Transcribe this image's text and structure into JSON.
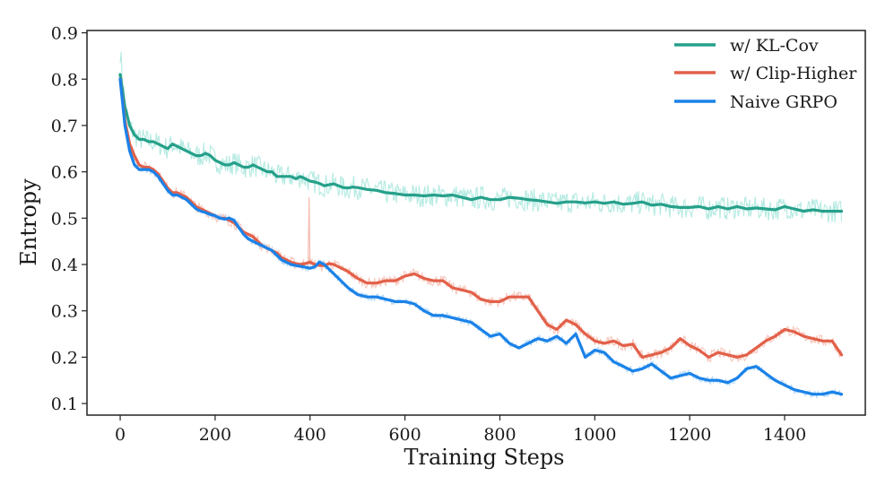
{
  "chart_data": {
    "type": "line",
    "title": "",
    "xlabel": "Training Steps",
    "ylabel": "Entropy",
    "xlim": [
      -70,
      1570
    ],
    "ylim": [
      0.075,
      0.905
    ],
    "xticks": [
      0,
      200,
      400,
      600,
      800,
      1000,
      1200,
      1400
    ],
    "yticks": [
      0.1,
      0.2,
      0.3,
      0.4,
      0.5,
      0.6,
      0.7,
      0.8,
      0.9
    ],
    "grid": false,
    "legend_position": "top-right",
    "series": [
      {
        "name": "w/ KL-Cov",
        "color": "#26a08a",
        "raw_color": "#a6e6dc",
        "x": [
          0,
          10,
          20,
          30,
          40,
          50,
          60,
          70,
          80,
          90,
          100,
          110,
          120,
          130,
          140,
          150,
          160,
          170,
          180,
          190,
          200,
          210,
          220,
          230,
          240,
          250,
          260,
          270,
          280,
          290,
          300,
          310,
          320,
          330,
          340,
          350,
          360,
          370,
          380,
          390,
          400,
          410,
          420,
          430,
          440,
          450,
          460,
          470,
          480,
          490,
          500,
          520,
          540,
          560,
          580,
          600,
          620,
          640,
          660,
          680,
          700,
          720,
          740,
          760,
          780,
          800,
          820,
          840,
          860,
          880,
          900,
          920,
          940,
          960,
          980,
          1000,
          1020,
          1040,
          1060,
          1080,
          1100,
          1120,
          1140,
          1160,
          1180,
          1200,
          1220,
          1240,
          1260,
          1280,
          1300,
          1320,
          1340,
          1360,
          1380,
          1400,
          1420,
          1440,
          1460,
          1480,
          1500,
          1520
        ],
        "values": [
          0.81,
          0.74,
          0.7,
          0.68,
          0.67,
          0.67,
          0.665,
          0.665,
          0.66,
          0.655,
          0.65,
          0.66,
          0.655,
          0.65,
          0.645,
          0.64,
          0.635,
          0.635,
          0.64,
          0.635,
          0.625,
          0.62,
          0.615,
          0.615,
          0.62,
          0.615,
          0.61,
          0.61,
          0.615,
          0.61,
          0.605,
          0.6,
          0.6,
          0.59,
          0.59,
          0.59,
          0.59,
          0.585,
          0.59,
          0.585,
          0.58,
          0.578,
          0.575,
          0.57,
          0.572,
          0.574,
          0.57,
          0.566,
          0.565,
          0.567,
          0.566,
          0.562,
          0.56,
          0.555,
          0.553,
          0.55,
          0.55,
          0.548,
          0.55,
          0.548,
          0.55,
          0.545,
          0.54,
          0.545,
          0.54,
          0.54,
          0.545,
          0.543,
          0.54,
          0.538,
          0.535,
          0.532,
          0.535,
          0.535,
          0.533,
          0.535,
          0.532,
          0.535,
          0.53,
          0.532,
          0.535,
          0.528,
          0.53,
          0.525,
          0.523,
          0.523,
          0.525,
          0.52,
          0.525,
          0.52,
          0.525,
          0.52,
          0.522,
          0.52,
          0.518,
          0.525,
          0.52,
          0.515,
          0.518,
          0.515,
          0.515,
          0.515
        ]
      },
      {
        "name": "w/ Clip-Higher",
        "color": "#e26049",
        "raw_color": "#f6bcb0",
        "x": [
          0,
          10,
          20,
          30,
          40,
          50,
          60,
          70,
          80,
          90,
          100,
          110,
          120,
          130,
          140,
          150,
          160,
          170,
          180,
          190,
          200,
          210,
          220,
          230,
          240,
          250,
          260,
          270,
          280,
          290,
          300,
          310,
          320,
          330,
          340,
          350,
          360,
          370,
          380,
          390,
          400,
          410,
          420,
          430,
          440,
          450,
          460,
          480,
          500,
          520,
          540,
          560,
          580,
          600,
          620,
          640,
          660,
          680,
          700,
          720,
          740,
          760,
          780,
          800,
          820,
          840,
          860,
          880,
          900,
          920,
          940,
          960,
          980,
          1000,
          1020,
          1040,
          1060,
          1080,
          1100,
          1120,
          1140,
          1160,
          1180,
          1200,
          1220,
          1240,
          1260,
          1280,
          1300,
          1320,
          1340,
          1360,
          1380,
          1400,
          1420,
          1440,
          1460,
          1480,
          1500,
          1520
        ],
        "values": [
          0.8,
          0.71,
          0.66,
          0.635,
          0.615,
          0.61,
          0.61,
          0.605,
          0.595,
          0.58,
          0.565,
          0.555,
          0.555,
          0.55,
          0.545,
          0.535,
          0.525,
          0.52,
          0.515,
          0.51,
          0.505,
          0.5,
          0.5,
          0.495,
          0.49,
          0.48,
          0.47,
          0.465,
          0.46,
          0.45,
          0.44,
          0.435,
          0.43,
          0.425,
          0.415,
          0.41,
          0.405,
          0.402,
          0.4,
          0.402,
          0.405,
          0.4,
          0.398,
          0.398,
          0.402,
          0.4,
          0.395,
          0.385,
          0.37,
          0.36,
          0.36,
          0.365,
          0.365,
          0.375,
          0.38,
          0.37,
          0.365,
          0.365,
          0.35,
          0.345,
          0.34,
          0.325,
          0.32,
          0.32,
          0.33,
          0.33,
          0.33,
          0.3,
          0.27,
          0.26,
          0.28,
          0.27,
          0.25,
          0.235,
          0.23,
          0.235,
          0.225,
          0.228,
          0.2,
          0.205,
          0.21,
          0.22,
          0.24,
          0.225,
          0.215,
          0.2,
          0.21,
          0.205,
          0.2,
          0.205,
          0.22,
          0.235,
          0.245,
          0.26,
          0.255,
          0.245,
          0.24,
          0.235,
          0.235,
          0.205
        ]
      },
      {
        "name": "Naive GRPO",
        "color": "#1a82e8",
        "raw_color": "#a9d2f6",
        "x": [
          0,
          10,
          20,
          30,
          40,
          50,
          60,
          70,
          80,
          90,
          100,
          110,
          120,
          130,
          140,
          150,
          160,
          170,
          180,
          190,
          200,
          210,
          220,
          230,
          240,
          250,
          260,
          270,
          280,
          290,
          300,
          310,
          320,
          330,
          340,
          350,
          360,
          370,
          380,
          390,
          400,
          410,
          420,
          430,
          440,
          450,
          460,
          480,
          500,
          520,
          540,
          560,
          580,
          600,
          620,
          640,
          660,
          680,
          700,
          720,
          740,
          760,
          780,
          800,
          820,
          840,
          860,
          880,
          900,
          920,
          940,
          960,
          980,
          1000,
          1020,
          1040,
          1060,
          1080,
          1100,
          1120,
          1140,
          1160,
          1180,
          1200,
          1220,
          1240,
          1260,
          1280,
          1300,
          1320,
          1340,
          1360,
          1380,
          1400,
          1420,
          1440,
          1460,
          1480,
          1500,
          1520
        ],
        "values": [
          0.8,
          0.7,
          0.645,
          0.615,
          0.605,
          0.605,
          0.605,
          0.6,
          0.59,
          0.575,
          0.56,
          0.55,
          0.55,
          0.545,
          0.54,
          0.53,
          0.52,
          0.515,
          0.512,
          0.508,
          0.505,
          0.5,
          0.498,
          0.5,
          0.495,
          0.48,
          0.465,
          0.455,
          0.45,
          0.445,
          0.44,
          0.435,
          0.43,
          0.42,
          0.41,
          0.405,
          0.4,
          0.398,
          0.396,
          0.394,
          0.392,
          0.395,
          0.405,
          0.4,
          0.39,
          0.38,
          0.37,
          0.35,
          0.335,
          0.33,
          0.33,
          0.325,
          0.32,
          0.32,
          0.315,
          0.3,
          0.29,
          0.29,
          0.285,
          0.28,
          0.275,
          0.26,
          0.245,
          0.25,
          0.23,
          0.22,
          0.23,
          0.24,
          0.235,
          0.245,
          0.23,
          0.25,
          0.2,
          0.215,
          0.21,
          0.19,
          0.18,
          0.17,
          0.175,
          0.185,
          0.17,
          0.155,
          0.16,
          0.165,
          0.155,
          0.15,
          0.15,
          0.145,
          0.155,
          0.175,
          0.18,
          0.165,
          0.15,
          0.14,
          0.13,
          0.125,
          0.12,
          0.12,
          0.125,
          0.12
        ]
      }
    ]
  }
}
